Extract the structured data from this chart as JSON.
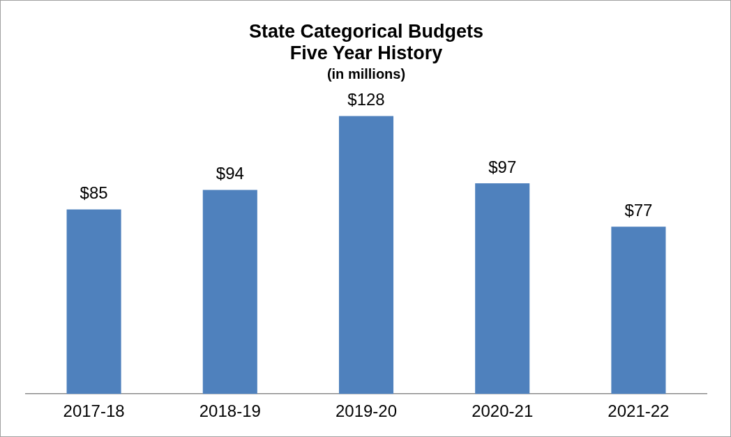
{
  "chart_data": {
    "type": "bar",
    "title": "State Categorical Budgets\nFive Year History",
    "subtitle": "(in millions)",
    "categories": [
      "2017-18",
      "2018-19",
      "2019-20",
      "2020-21",
      "2021-22"
    ],
    "values": [
      85,
      94,
      128,
      97,
      77
    ],
    "value_labels": [
      "$85",
      "$94",
      "$128",
      "$97",
      "$77"
    ],
    "color": "#4f81bd",
    "grid": false,
    "legend": false
  }
}
